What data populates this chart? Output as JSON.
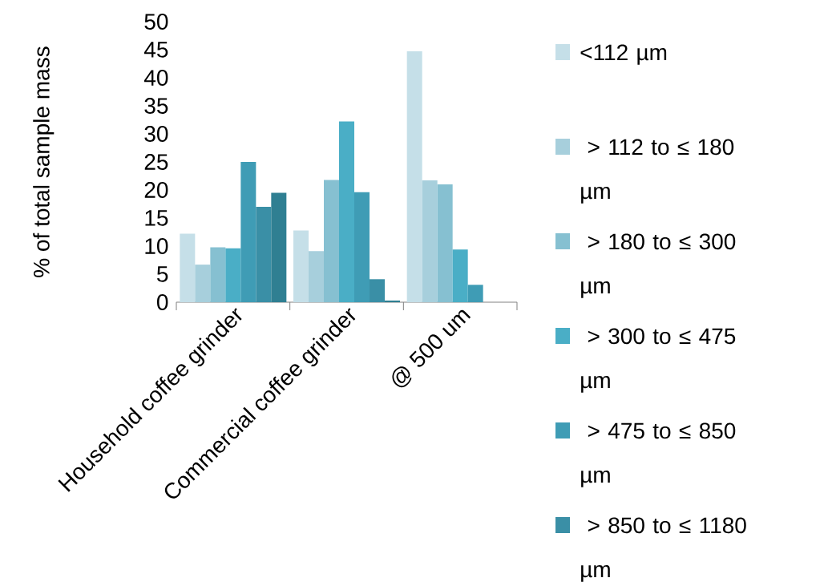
{
  "chart_data": {
    "type": "bar",
    "ylabel": "% of total sample mass",
    "categories": [
      "Household coffee grinder",
      "Commercial coffee grinder",
      "@ 500 um"
    ],
    "ylim": [
      0,
      50
    ],
    "yticks": [
      0,
      5,
      10,
      15,
      20,
      25,
      30,
      35,
      40,
      45,
      50
    ],
    "legend": "right",
    "grid": false,
    "series": [
      {
        "name": "<112 µm",
        "color": "#c5dfe8",
        "values": [
          12.2,
          12.8,
          44.7
        ]
      },
      {
        "name": " > 112 to ≤ 180 µm",
        "color": "#a7cfdc",
        "values": [
          6.7,
          9.1,
          21.7
        ]
      },
      {
        "name": " > 180 to ≤ 300 µm",
        "color": "#86c0d1",
        "values": [
          9.8,
          21.8,
          21.0
        ]
      },
      {
        "name": " > 300 to ≤ 475 µm",
        "color": "#4aaec6",
        "values": [
          9.6,
          32.2,
          9.4
        ]
      },
      {
        "name": " > 475 to ≤ 850 µm",
        "color": "#3f9cb5",
        "values": [
          25.0,
          19.6,
          3.1
        ]
      },
      {
        "name": " > 850 to ≤ 1180 µm",
        "color": "#3a8fa6",
        "values": [
          17.0,
          4.1,
          0
        ]
      },
      {
        "color": "#2f7f92",
        "values": [
          19.5,
          0.3,
          0
        ]
      }
    ]
  }
}
